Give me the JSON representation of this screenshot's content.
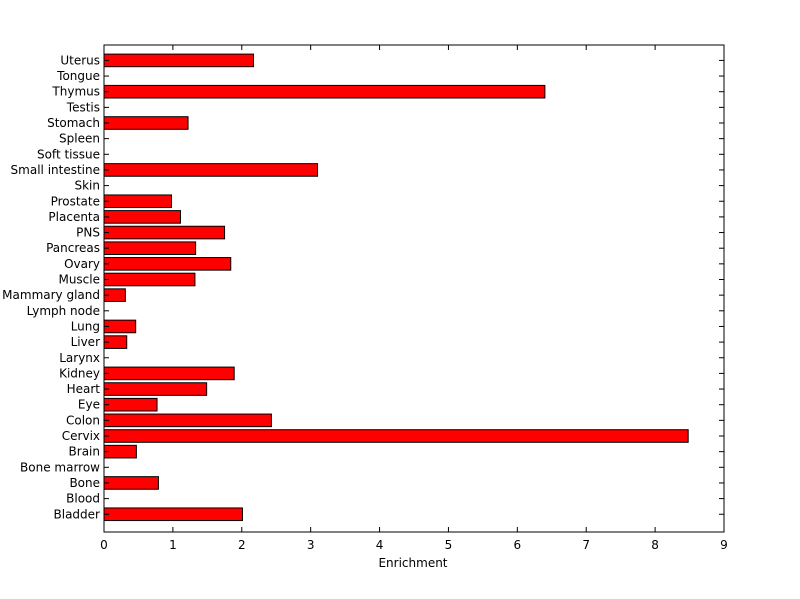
{
  "chart_data": {
    "type": "bar",
    "orientation": "horizontal",
    "title": "",
    "xlabel": "Enrichment",
    "ylabel": "",
    "xlim": [
      0,
      9
    ],
    "x_ticks": [
      "0",
      "1",
      "2",
      "3",
      "4",
      "5",
      "6",
      "7",
      "8",
      "9"
    ],
    "grid": false,
    "bar_color": "#ff0000",
    "categories": [
      "Uterus",
      "Tongue",
      "Thymus",
      "Testis",
      "Stomach",
      "Spleen",
      "Soft tissue",
      "Small intestine",
      "Skin",
      "Prostate",
      "Placenta",
      "PNS",
      "Pancreas",
      "Ovary",
      "Muscle",
      "Mammary gland",
      "Lymph node",
      "Lung",
      "Liver",
      "Larynx",
      "Kidney",
      "Heart",
      "Eye",
      "Colon",
      "Cervix",
      "Brain",
      "Bone marrow",
      "Bone",
      "Blood",
      "Bladder"
    ],
    "values": [
      2.17,
      0,
      6.4,
      0,
      1.22,
      0,
      0,
      3.1,
      0,
      0.98,
      1.11,
      1.75,
      1.33,
      1.84,
      1.32,
      0.31,
      0,
      0.46,
      0.33,
      0,
      1.89,
      1.49,
      0.77,
      2.43,
      8.48,
      0.47,
      0,
      0.79,
      0,
      2.01
    ]
  }
}
